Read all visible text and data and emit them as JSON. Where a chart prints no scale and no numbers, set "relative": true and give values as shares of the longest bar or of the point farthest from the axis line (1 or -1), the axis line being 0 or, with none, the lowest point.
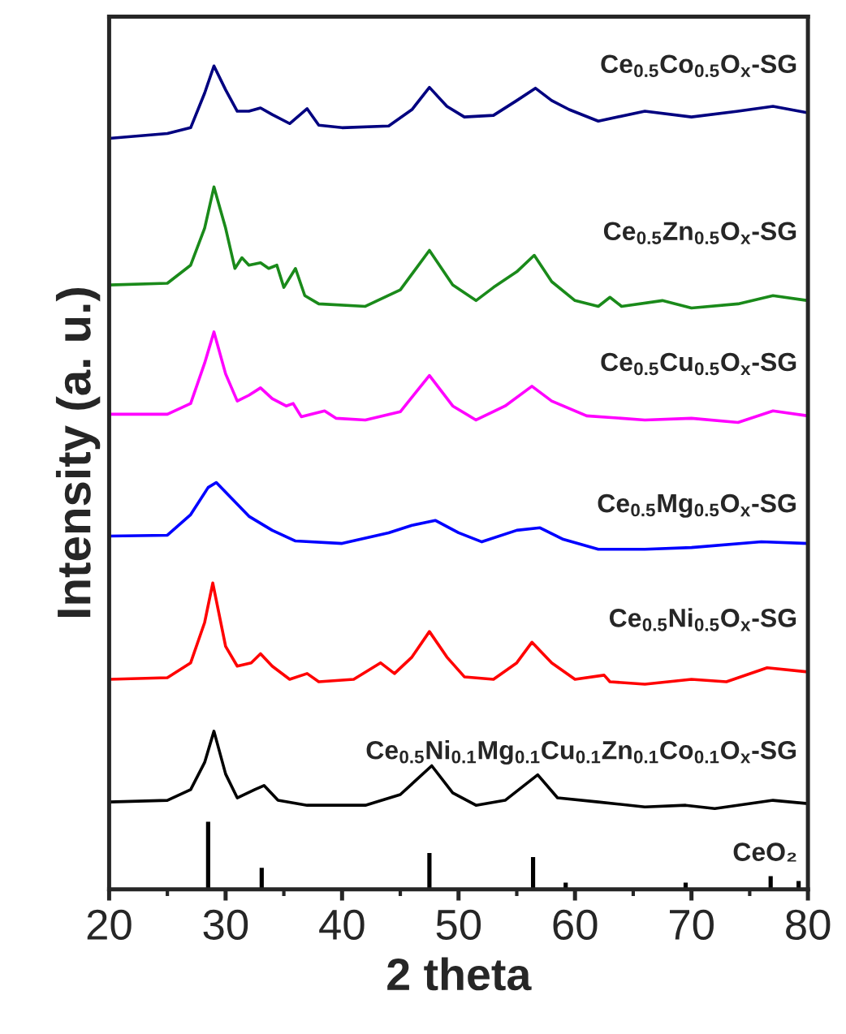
{
  "chart_data": {
    "type": "line",
    "relative": true,
    "xlabel": "2 theta",
    "ylabel": "Intensity (a. u.)",
    "xlim": [
      20,
      80
    ],
    "xticks": [
      20,
      {
        "value": 25,
        "label": null
      },
      30,
      {
        "value": 35,
        "label": null
      },
      40,
      {
        "value": 45,
        "label": null
      },
      50,
      {
        "value": 55,
        "label": null
      },
      60,
      {
        "value": 65,
        "label": null
      },
      70,
      {
        "value": 75,
        "label": null
      },
      80
    ],
    "grid": false,
    "series": [
      {
        "name": "Ce$_{0.5}$Co$_{0.5}$O$_{x}$-SG",
        "color": "#000080",
        "x": [
          20,
          25,
          27,
          28.2,
          29,
          30,
          31,
          32,
          33,
          34,
          35.5,
          37,
          38,
          40,
          44,
          46,
          47.5,
          49,
          50.5,
          53,
          55,
          56.6,
          58,
          59.5,
          62,
          66,
          70,
          74,
          77,
          80
        ],
        "values": [
          0.912,
          0.918,
          0.925,
          0.967,
          1.0,
          0.971,
          0.945,
          0.945,
          0.949,
          0.941,
          0.93,
          0.948,
          0.928,
          0.925,
          0.927,
          0.947,
          0.974,
          0.951,
          0.938,
          0.94,
          0.958,
          0.973,
          0.958,
          0.947,
          0.933,
          0.945,
          0.938,
          0.945,
          0.951,
          0.943
        ]
      },
      {
        "name": "Ce$_{0.5}$Zn$_{0.5}$O$_{x}$-SG",
        "color": "#1a8a1a",
        "x": [
          20,
          25,
          27,
          28.2,
          29,
          30,
          30.8,
          31.4,
          32,
          33,
          33.7,
          34.4,
          35,
          36,
          36.8,
          38,
          42,
          45,
          47.5,
          49.5,
          51.5,
          53,
          55,
          56.5,
          58,
          60,
          62,
          63,
          64,
          67.5,
          70,
          74,
          77,
          80
        ],
        "values": [
          0.734,
          0.736,
          0.758,
          0.803,
          0.853,
          0.803,
          0.754,
          0.767,
          0.758,
          0.761,
          0.754,
          0.758,
          0.731,
          0.754,
          0.721,
          0.711,
          0.708,
          0.728,
          0.776,
          0.734,
          0.715,
          0.731,
          0.75,
          0.77,
          0.738,
          0.715,
          0.708,
          0.719,
          0.708,
          0.715,
          0.706,
          0.711,
          0.721,
          0.715
        ]
      },
      {
        "name": "Ce$_{0.5}$Cu$_{0.5}$O$_{x}$-SG",
        "color": "#ff00ff",
        "x": [
          20,
          25,
          27,
          28.2,
          29,
          30,
          31,
          32,
          33,
          34,
          35.2,
          35.8,
          36.5,
          38.5,
          39.5,
          42,
          45,
          47.5,
          49.5,
          51.5,
          54,
          56.3,
          58,
          61,
          66,
          70,
          74,
          77,
          80
        ],
        "values": [
          0.577,
          0.577,
          0.59,
          0.639,
          0.677,
          0.626,
          0.593,
          0.6,
          0.609,
          0.596,
          0.587,
          0.59,
          0.574,
          0.581,
          0.572,
          0.57,
          0.58,
          0.624,
          0.587,
          0.57,
          0.587,
          0.611,
          0.593,
          0.575,
          0.57,
          0.572,
          0.567,
          0.581,
          0.575
        ]
      },
      {
        "name": "Ce$_{0.5}$Mg$_{0.5}$O$_{x}$-SG",
        "color": "#0000ff",
        "x": [
          20,
          25,
          27,
          28.5,
          29.2,
          30.5,
          32,
          34,
          36,
          40,
          44,
          46,
          48,
          50,
          52,
          55,
          57,
          59,
          62,
          66,
          70,
          76,
          80
        ],
        "values": [
          0.429,
          0.43,
          0.455,
          0.488,
          0.494,
          0.475,
          0.453,
          0.436,
          0.423,
          0.42,
          0.433,
          0.442,
          0.448,
          0.433,
          0.422,
          0.436,
          0.439,
          0.425,
          0.413,
          0.413,
          0.415,
          0.422,
          0.42
        ]
      },
      {
        "name": "Ce$_{0.5}$Ni$_{0.5}$O$_{x}$-SG",
        "color": "#ff0000",
        "x": [
          20,
          25,
          27,
          28.2,
          28.9,
          30,
          31,
          32.2,
          33,
          34,
          35.5,
          37,
          38,
          41,
          43.3,
          44.5,
          46,
          47.5,
          49,
          50.5,
          53,
          55,
          56.3,
          58,
          60,
          62.5,
          63,
          66,
          70,
          73,
          76.5,
          80
        ],
        "values": [
          0.255,
          0.257,
          0.275,
          0.324,
          0.372,
          0.295,
          0.271,
          0.275,
          0.286,
          0.271,
          0.255,
          0.262,
          0.252,
          0.255,
          0.275,
          0.262,
          0.282,
          0.313,
          0.282,
          0.258,
          0.255,
          0.275,
          0.3,
          0.275,
          0.255,
          0.26,
          0.252,
          0.249,
          0.255,
          0.252,
          0.269,
          0.264
        ]
      },
      {
        "name": "Ce$_{0.5}$Ni$_{0.1}$Mg$_{0.1}$Cu$_{0.1}$Zn$_{0.1}$Co$_{0.1}$O$_{x}$-SG",
        "color": "#000000",
        "x": [
          20,
          25,
          27,
          28.2,
          29,
          30,
          31,
          32.5,
          33.3,
          34.5,
          37,
          42,
          45,
          47.7,
          49.5,
          51.5,
          54,
          56.8,
          58.5,
          62,
          66,
          69.5,
          72,
          77,
          80
        ],
        "values": [
          0.106,
          0.108,
          0.121,
          0.154,
          0.192,
          0.14,
          0.111,
          0.121,
          0.126,
          0.108,
          0.102,
          0.102,
          0.115,
          0.15,
          0.117,
          0.102,
          0.108,
          0.139,
          0.111,
          0.106,
          0.1,
          0.102,
          0.098,
          0.108,
          0.104
        ]
      },
      {
        "name": "CeO₂",
        "type": "bar",
        "color": "#000000",
        "x": [
          28.5,
          33.1,
          47.5,
          56.4,
          59.2,
          69.5,
          76.8,
          79.2
        ],
        "values": [
          0.082,
          0.026,
          0.044,
          0.039,
          0.008,
          0.008,
          0.016,
          0.01
        ]
      }
    ]
  }
}
